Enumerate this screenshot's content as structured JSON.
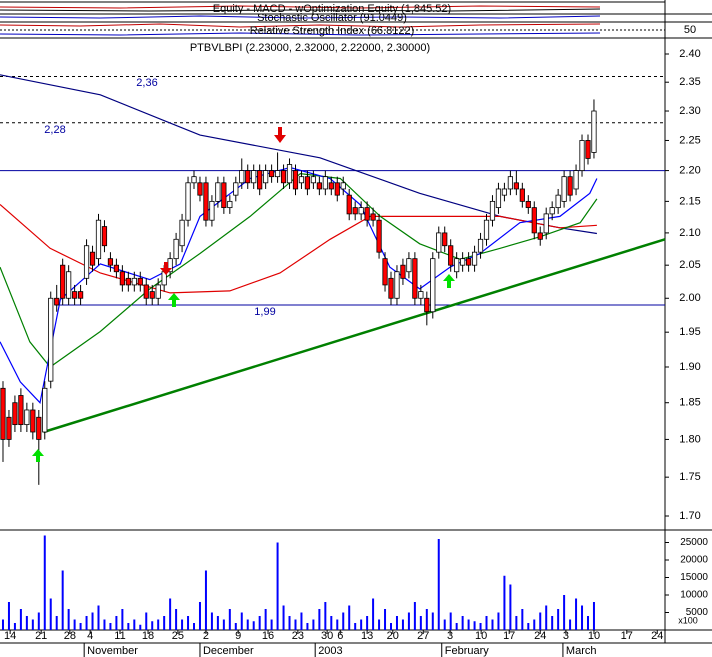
{
  "indicators": {
    "equity": "Equity - MACD - wOptimization Equity (1,845.52)",
    "stochastic": "Stochastic Oscillator (91.0449)",
    "rsi": "Relative Strength Index (66.8122)",
    "rsi_ticks": [
      50
    ]
  },
  "chart_data": {
    "type": "candlestick",
    "title": "PTBVLBPI (2.23000, 2.32000, 2.22000, 2.30000)",
    "log": true,
    "ylim": [
      1.7,
      2.4
    ],
    "yticks": [
      {
        "value": 1.7,
        "label": "1.70"
      },
      {
        "value": 1.75,
        "label": "1.75"
      },
      {
        "value": 1.8,
        "label": "1.80"
      },
      {
        "value": 1.85,
        "label": "1.85"
      },
      {
        "value": 1.9,
        "label": "1.90"
      },
      {
        "value": 1.95,
        "label": "1.95"
      },
      {
        "value": 2.0,
        "label": "2.00"
      },
      {
        "value": 2.05,
        "label": "2.05"
      },
      {
        "value": 2.1,
        "label": "2.10"
      },
      {
        "value": 2.15,
        "label": "2.15"
      },
      {
        "value": 2.2,
        "label": "2.20"
      },
      {
        "value": 2.25,
        "label": "2.25"
      },
      {
        "value": 2.3,
        "label": "2.30"
      },
      {
        "value": 2.35,
        "label": "2.35"
      },
      {
        "value": 2.4,
        "label": "2.40"
      }
    ],
    "xlim": [
      -0.5,
      110.9
    ],
    "xticks": [
      {
        "value": 1.2,
        "label": "14"
      },
      {
        "value": 6.4,
        "label": "21"
      },
      {
        "value": 11.2,
        "label": "28"
      },
      {
        "value": 14.6,
        "label": "4"
      },
      {
        "value": 19.6,
        "label": "11"
      },
      {
        "value": 24.3,
        "label": "18"
      },
      {
        "value": 29.3,
        "label": "25"
      },
      {
        "value": 34,
        "label": "2"
      },
      {
        "value": 39.4,
        "label": "9"
      },
      {
        "value": 44.4,
        "label": "16"
      },
      {
        "value": 49.4,
        "label": "23"
      },
      {
        "value": 54.3,
        "label": "30"
      },
      {
        "value": 56.5,
        "label": "6"
      },
      {
        "value": 61,
        "label": "13"
      },
      {
        "value": 65.3,
        "label": "20"
      },
      {
        "value": 70.4,
        "label": "27"
      },
      {
        "value": 74.9,
        "label": "3"
      },
      {
        "value": 80.1,
        "label": "10"
      },
      {
        "value": 84.8,
        "label": "17"
      },
      {
        "value": 90,
        "label": "24"
      },
      {
        "value": 94.3,
        "label": "3"
      },
      {
        "value": 99,
        "label": "10"
      },
      {
        "value": 104.5,
        "label": "17"
      },
      {
        "value": 109.6,
        "label": "24"
      }
    ],
    "months": [
      {
        "value": 13.6,
        "label": "November"
      },
      {
        "value": 33,
        "label": "December"
      },
      {
        "value": 52.3,
        "label": "2003"
      },
      {
        "value": 73.5,
        "label": "February"
      },
      {
        "value": 93.8,
        "label": "March"
      }
    ],
    "up_color": "#ffffff",
    "down_color": "#ff0000",
    "open": [
      1.87,
      1.83,
      1.85,
      1.86,
      1.82,
      1.84,
      1.83,
      1.81,
      1.88,
      2.0,
      2.05,
      2.0,
      2.01,
      2.01,
      2.03,
      2.07,
      2.06,
      2.11,
      2.06,
      2.05,
      2.04,
      2.03,
      2.02,
      2.03,
      2.02,
      2.01,
      2.0,
      2.02,
      2.04,
      2.06,
      2.08,
      2.12,
      2.18,
      2.18,
      2.18,
      2.12,
      2.15,
      2.18,
      2.14,
      2.16,
      2.18,
      2.2,
      2.18,
      2.2,
      2.18,
      2.2,
      2.19,
      2.2,
      2.18,
      2.2,
      2.18,
      2.19,
      2.18,
      2.18,
      2.17,
      2.18,
      2.18,
      2.17,
      2.16,
      2.14,
      2.13,
      2.14,
      2.13,
      2.12,
      2.06,
      2.03,
      2.0,
      2.05,
      2.04,
      2.06,
      2.0,
      2.0,
      1.98,
      2.07,
      2.1,
      2.08,
      2.04,
      2.05,
      2.06,
      2.05,
      2.07,
      2.09,
      2.12,
      2.14,
      2.16,
      2.17,
      2.18,
      2.17,
      2.15,
      2.14,
      2.1,
      2.1,
      2.13,
      2.14,
      2.15,
      2.19,
      2.17,
      2.2,
      2.25,
      2.23
    ],
    "high": [
      1.88,
      1.84,
      1.86,
      1.87,
      1.85,
      1.85,
      1.84,
      1.88,
      2.01,
      2.02,
      2.06,
      2.05,
      2.02,
      2.02,
      2.09,
      2.08,
      2.13,
      2.12,
      2.07,
      2.06,
      2.05,
      2.04,
      2.04,
      2.04,
      2.03,
      2.02,
      2.03,
      2.05,
      2.07,
      2.1,
      2.13,
      2.19,
      2.2,
      2.19,
      2.19,
      2.16,
      2.19,
      2.19,
      2.16,
      2.19,
      2.22,
      2.21,
      2.21,
      2.21,
      2.21,
      2.21,
      2.23,
      2.21,
      2.22,
      2.21,
      2.2,
      2.2,
      2.2,
      2.19,
      2.2,
      2.19,
      2.19,
      2.19,
      2.17,
      2.15,
      2.15,
      2.15,
      2.14,
      2.13,
      2.07,
      2.04,
      2.05,
      2.06,
      2.07,
      2.07,
      2.02,
      2.01,
      2.07,
      2.11,
      2.11,
      2.09,
      2.07,
      2.07,
      2.07,
      2.08,
      2.1,
      2.13,
      2.16,
      2.18,
      2.18,
      2.2,
      2.2,
      2.18,
      2.16,
      2.15,
      2.11,
      2.14,
      2.15,
      2.17,
      2.2,
      2.2,
      2.21,
      2.26,
      2.26,
      2.32
    ],
    "low": [
      1.77,
      1.79,
      1.81,
      1.81,
      1.81,
      1.8,
      1.74,
      1.8,
      1.87,
      1.98,
      1.99,
      1.99,
      1.99,
      1.99,
      2.02,
      2.04,
      2.05,
      2.07,
      2.04,
      2.03,
      2.01,
      2.01,
      2.01,
      2.01,
      1.99,
      1.99,
      1.99,
      2.01,
      2.03,
      2.05,
      2.07,
      2.11,
      2.17,
      2.15,
      2.11,
      2.11,
      2.14,
      2.13,
      2.13,
      2.15,
      2.17,
      2.17,
      2.17,
      2.16,
      2.17,
      2.18,
      2.18,
      2.17,
      2.17,
      2.16,
      2.17,
      2.16,
      2.17,
      2.16,
      2.16,
      2.16,
      2.15,
      2.16,
      2.12,
      2.12,
      2.12,
      2.11,
      2.11,
      2.06,
      2.01,
      1.99,
      1.99,
      2.02,
      2.03,
      1.99,
      1.99,
      1.96,
      1.97,
      2.06,
      2.07,
      2.04,
      2.03,
      2.04,
      2.04,
      2.04,
      2.06,
      2.08,
      2.11,
      2.13,
      2.15,
      2.16,
      2.16,
      2.14,
      2.13,
      2.09,
      2.08,
      2.09,
      2.12,
      2.13,
      2.14,
      2.15,
      2.16,
      2.19,
      2.21,
      2.22
    ],
    "close": [
      1.8,
      1.8,
      1.82,
      1.82,
      1.84,
      1.81,
      1.8,
      1.87,
      2.0,
      1.99,
      2.0,
      2.04,
      2.0,
      2.0,
      2.08,
      2.05,
      2.12,
      2.08,
      2.05,
      2.04,
      2.02,
      2.02,
      2.03,
      2.02,
      2.0,
      2.0,
      2.02,
      2.04,
      2.06,
      2.09,
      2.12,
      2.18,
      2.19,
      2.16,
      2.12,
      2.15,
      2.18,
      2.14,
      2.15,
      2.18,
      2.2,
      2.18,
      2.2,
      2.17,
      2.2,
      2.19,
      2.2,
      2.18,
      2.21,
      2.17,
      2.19,
      2.17,
      2.19,
      2.17,
      2.19,
      2.17,
      2.16,
      2.18,
      2.13,
      2.13,
      2.14,
      2.12,
      2.12,
      2.07,
      2.02,
      2.0,
      2.04,
      2.03,
      2.06,
      2.0,
      2.01,
      1.98,
      2.06,
      2.1,
      2.08,
      2.05,
      2.06,
      2.06,
      2.05,
      2.07,
      2.09,
      2.12,
      2.15,
      2.17,
      2.17,
      2.19,
      2.17,
      2.15,
      2.14,
      2.1,
      2.09,
      2.13,
      2.14,
      2.16,
      2.19,
      2.16,
      2.2,
      2.25,
      2.22,
      2.3
    ],
    "lines": [
      {
        "color": "#000080",
        "x": [
          -0.5,
          16.3,
          33,
          53.1,
          69.8,
          83.3,
          93.3,
          99.5
        ],
        "values": [
          2.363,
          2.328,
          2.259,
          2.221,
          2.163,
          2.126,
          2.108,
          2.099
        ]
      },
      {
        "color": "#e00000",
        "x": [
          -0.5,
          7.9,
          16.3,
          28,
          38,
          46.4,
          54.8,
          61.5,
          69.8,
          83.3,
          93.3,
          99.5
        ],
        "values": [
          2.145,
          2.076,
          2.038,
          2.008,
          2.011,
          2.038,
          2.09,
          2.126,
          2.126,
          2.126,
          2.108,
          2.112
        ]
      },
      {
        "color": "#008000",
        "x": [
          -0.5,
          4.5,
          7.9,
          16.3,
          24.6,
          33,
          41.4,
          49.8,
          56.5,
          63.2,
          69.8,
          76.6,
          83.3,
          90,
          96.7,
          99.5
        ],
        "values": [
          2.047,
          1.936,
          1.9,
          1.951,
          2.014,
          2.068,
          2.126,
          2.195,
          2.187,
          2.126,
          2.083,
          2.059,
          2.076,
          2.094,
          2.116,
          2.154
        ]
      },
      {
        "color": "#0000ff",
        "x": [
          -0.5,
          2.9,
          6.2,
          9.6,
          16.3,
          24.6,
          29.7,
          33,
          41.4,
          48.1,
          54.8,
          59.8,
          64.8,
          69.8,
          74.9,
          79.9,
          86.6,
          93.3,
          98.3,
          99.5
        ],
        "values": [
          1.936,
          1.879,
          1.85,
          1.998,
          2.052,
          2.028,
          2.052,
          2.126,
          2.187,
          2.205,
          2.187,
          2.145,
          2.047,
          2.014,
          2.047,
          2.068,
          2.116,
          2.126,
          2.163,
          2.187
        ]
      }
    ],
    "trendline": {
      "color": "#008000",
      "x": [
        6.8,
        110.9
      ],
      "values": [
        1.81,
        2.09
      ]
    },
    "levels": [
      {
        "value": 2.36,
        "label": "2,36",
        "style": "dotted",
        "color": "#000000"
      },
      {
        "value": 2.28,
        "label": "2,28",
        "style": "dotted",
        "color": "#000000"
      },
      {
        "value": 2.2,
        "style": "solid",
        "color": "#0000a0"
      },
      {
        "value": 1.99,
        "label": "1,99",
        "style": "solid",
        "color": "#0000a0"
      }
    ],
    "volume": {
      "color": "#0000ff",
      "ylim": [
        0,
        28000
      ],
      "yticks": [
        5000,
        10000,
        15000,
        20000,
        25000
      ],
      "unit_label": "x100",
      "values": [
        3000,
        8000,
        2000,
        6000,
        4000,
        3000,
        5000,
        27000,
        9000,
        4000,
        17000,
        6000,
        3000,
        2000,
        4000,
        5000,
        7000,
        3000,
        2000,
        4000,
        6000,
        2000,
        3000,
        1500,
        5000,
        2500,
        3000,
        4000,
        9000,
        6000,
        3000,
        4000,
        2000,
        8000,
        17000,
        5000,
        4000,
        3000,
        6000,
        2000,
        5000,
        3000,
        2500,
        4000,
        6000,
        3000,
        25000,
        7000,
        4000,
        3000,
        5000,
        2000,
        3000,
        6000,
        8000,
        4000,
        3000,
        5000,
        7000,
        2000,
        3000,
        4000,
        9000,
        3000,
        6000,
        2000,
        4000,
        3000,
        5000,
        8000,
        4000,
        6000,
        5000,
        26000,
        3000,
        5000,
        2000,
        4000,
        3000,
        2500,
        2000,
        4000,
        3000,
        5000,
        15500,
        13000,
        4000,
        6000,
        2000,
        3000,
        5000,
        7000,
        4000,
        6000,
        10000,
        3000,
        9000,
        7000,
        4000,
        8000
      ]
    }
  }
}
